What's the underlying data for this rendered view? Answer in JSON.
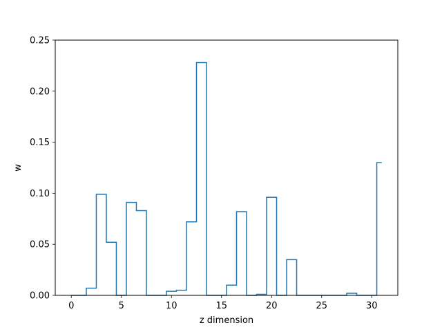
{
  "chart_data": {
    "type": "line",
    "drawstyle": "steps-mid",
    "title": "",
    "xlabel": "z dimension",
    "ylabel": "w",
    "xlim": [
      -1.6,
      32.6
    ],
    "ylim": [
      0,
      0.25
    ],
    "grid": false,
    "legend": "none",
    "color": "#1f77b4",
    "x_ticks": [
      0,
      5,
      10,
      15,
      20,
      25,
      30
    ],
    "y_ticks": [
      "0.00",
      "0.05",
      "0.10",
      "0.15",
      "0.20",
      "0.25"
    ],
    "x": [
      0,
      1,
      2,
      3,
      4,
      5,
      6,
      7,
      8,
      9,
      10,
      11,
      12,
      13,
      14,
      15,
      16,
      17,
      18,
      19,
      20,
      21,
      22,
      23,
      24,
      25,
      26,
      27,
      28,
      29,
      30,
      31
    ],
    "y": [
      0,
      0,
      0.007,
      0.099,
      0.052,
      0,
      0.091,
      0.083,
      0,
      0,
      0.004,
      0.005,
      0.072,
      0.228,
      0,
      0,
      0.01,
      0.082,
      0,
      0.001,
      0.096,
      0,
      0.035,
      0,
      0,
      0,
      0,
      0,
      0.002,
      0,
      0,
      0.13
    ]
  }
}
